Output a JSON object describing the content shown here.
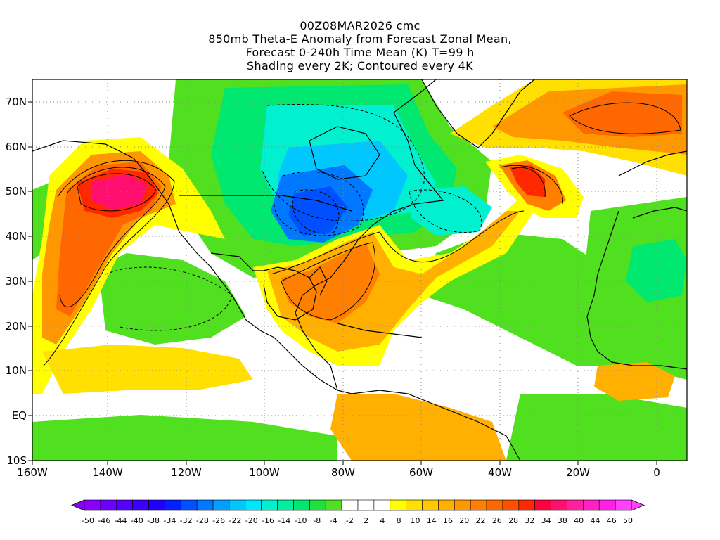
{
  "title": {
    "line1": "00Z08MAR2026 cmc",
    "line2": "850mb Theta-E Anomaly from Forecast Zonal Mean,",
    "line3": "Forecast 0-240h Time Mean (K) T=99 h",
    "line4": "Shading every 2K; Contoured every 4K"
  },
  "map": {
    "lon_range": [
      -160,
      10
    ],
    "lat_range": [
      -10,
      75
    ],
    "lat_ticks": [
      "70N",
      "60N",
      "50N",
      "40N",
      "30N",
      "20N",
      "10N",
      "EQ",
      "10S"
    ],
    "lon_ticks": [
      "160W",
      "140W",
      "120W",
      "100W",
      "80W",
      "60W",
      "40W",
      "20W",
      "0"
    ],
    "features": [
      {
        "name": "North Pacific warm anomaly",
        "lon": -140,
        "lat": 48,
        "value": 34
      },
      {
        "name": "Central North America cold anomaly",
        "lon": -92,
        "lat": 45,
        "value": -38
      },
      {
        "name": "Canadian cold anomaly",
        "lon": -90,
        "lat": 62,
        "value": -26
      },
      {
        "name": "Gulf of Mexico / Southeast US warm anomaly",
        "lon": -82,
        "lat": 28,
        "value": 18
      },
      {
        "name": "North Atlantic warm plume",
        "lon": -30,
        "lat": 50,
        "value": 30
      },
      {
        "name": "Northeast Atlantic warm anomaly",
        "lon": -15,
        "lat": 65,
        "value": 20
      },
      {
        "name": "Sahara cool anomaly",
        "lon": 2,
        "lat": 28,
        "value": -14
      }
    ]
  },
  "colorbar": {
    "labels": [
      "-50",
      "-46",
      "-44",
      "-40",
      "-38",
      "-34",
      "-32",
      "-28",
      "-26",
      "-22",
      "-20",
      "-16",
      "-14",
      "-10",
      "-8",
      "-4",
      "-2",
      "2",
      "4",
      "8",
      "10",
      "14",
      "16",
      "20",
      "22",
      "26",
      "28",
      "32",
      "34",
      "38",
      "40",
      "44",
      "46",
      "50"
    ],
    "colors": [
      "#8a00ff",
      "#6a00ff",
      "#5500ff",
      "#3a00ff",
      "#1f00ff",
      "#0020ff",
      "#0050ff",
      "#0078ff",
      "#00a0ff",
      "#00c8ff",
      "#00e6ff",
      "#00f0d0",
      "#00f0a0",
      "#00e870",
      "#20e040",
      "#50e020",
      "#ffffff",
      "#ffffff",
      "#ffffff",
      "#ffff00",
      "#ffe000",
      "#ffc800",
      "#ffb000",
      "#ff9800",
      "#ff8000",
      "#ff6800",
      "#ff5000",
      "#ff2800",
      "#ff0040",
      "#ff1070",
      "#ff20a0",
      "#ff20c8",
      "#ff20e8",
      "#ff40ff"
    ]
  }
}
